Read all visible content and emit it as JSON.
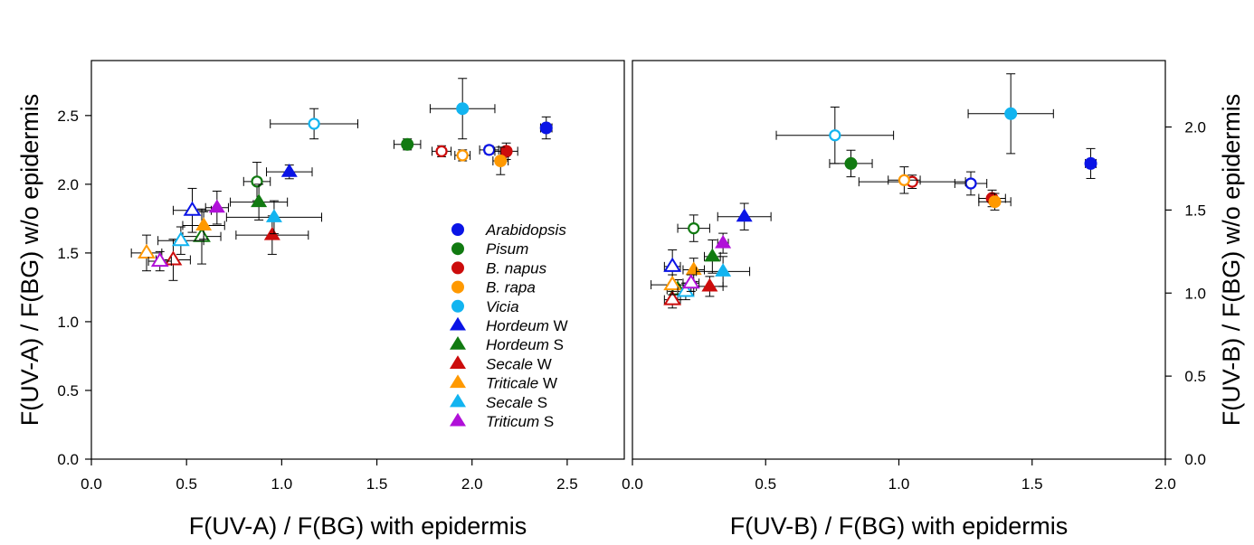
{
  "colors": {
    "Arabidopsis": "#0a14e6",
    "Pisum": "#117a11",
    "B. napus": "#cc0c0c",
    "B. rapa": "#ff9900",
    "Vicia": "#12b4f0",
    "Hordeum W": "#0a14e6",
    "Hordeum S": "#117a11",
    "Secale W": "#cc0c0c",
    "Triticale W": "#ff9900",
    "Secale S": "#12b4f0",
    "Triticum S": "#b010d8"
  },
  "legend": [
    {
      "key": "Arabidopsis",
      "italic": "Arabidopsis",
      "suffix": "",
      "marker": "circle"
    },
    {
      "key": "Pisum",
      "italic": "Pisum",
      "suffix": "",
      "marker": "circle"
    },
    {
      "key": "B. napus",
      "italic": "B. napus",
      "suffix": "",
      "marker": "circle"
    },
    {
      "key": "B. rapa",
      "italic": "B. rapa",
      "suffix": "",
      "marker": "circle"
    },
    {
      "key": "Vicia",
      "italic": "Vicia",
      "suffix": "",
      "marker": "circle"
    },
    {
      "key": "Hordeum W",
      "italic": "Hordeum",
      "suffix": " W",
      "marker": "triangle"
    },
    {
      "key": "Hordeum S",
      "italic": "Hordeum",
      "suffix": " S",
      "marker": "triangle"
    },
    {
      "key": "Secale W",
      "italic": "Secale",
      "suffix": " W",
      "marker": "triangle"
    },
    {
      "key": "Triticale W",
      "italic": "Triticale",
      "suffix": " W",
      "marker": "triangle"
    },
    {
      "key": "Secale S",
      "italic": "Secale",
      "suffix": " S",
      "marker": "triangle"
    },
    {
      "key": "Triticum S",
      "italic": "Triticum",
      "suffix": " S",
      "marker": "triangle"
    }
  ],
  "chart_data": [
    {
      "type": "scatter",
      "title": "",
      "xlabel": "F(UV-A) / F(BG) with epidermis",
      "ylabel": "F(UV-A) / F(BG) w/o epidermis",
      "ylabel_side": "left",
      "xlim": [
        0,
        2.8
      ],
      "ylim": [
        0,
        2.9
      ],
      "xticks": [
        "0.0",
        "0.5",
        "1.0",
        "1.5",
        "2.0",
        "2.5"
      ],
      "yticks": [
        "0.0",
        "0.5",
        "1.0",
        "1.5",
        "2.0",
        "2.5"
      ],
      "grid": false,
      "legend_position": "lower-right",
      "points": [
        {
          "series": "Arabidopsis",
          "marker": "circle",
          "filled": true,
          "x": 2.39,
          "y": 2.41,
          "xerr": 0.03,
          "yerr": 0.08
        },
        {
          "series": "Arabidopsis",
          "marker": "circle",
          "filled": false,
          "x": 2.09,
          "y": 2.25,
          "xerr": 0.05,
          "yerr": 0.03
        },
        {
          "series": "Pisum",
          "marker": "circle",
          "filled": true,
          "x": 1.66,
          "y": 2.29,
          "xerr": 0.07,
          "yerr": 0.04
        },
        {
          "series": "Pisum",
          "marker": "circle",
          "filled": false,
          "x": 0.87,
          "y": 2.02,
          "xerr": 0.07,
          "yerr": 0.14
        },
        {
          "series": "B. napus",
          "marker": "circle",
          "filled": true,
          "x": 2.18,
          "y": 2.24,
          "xerr": 0.06,
          "yerr": 0.06
        },
        {
          "series": "B. napus",
          "marker": "circle",
          "filled": false,
          "x": 1.84,
          "y": 2.24,
          "xerr": 0.05,
          "yerr": 0.04
        },
        {
          "series": "B. rapa",
          "marker": "circle",
          "filled": true,
          "x": 2.15,
          "y": 2.17,
          "xerr": 0.04,
          "yerr": 0.1
        },
        {
          "series": "B. rapa",
          "marker": "circle",
          "filled": false,
          "x": 1.95,
          "y": 2.21,
          "xerr": 0.04,
          "yerr": 0.04
        },
        {
          "series": "Vicia",
          "marker": "circle",
          "filled": true,
          "x": 1.95,
          "y": 2.55,
          "xerr": 0.17,
          "yerr": 0.22
        },
        {
          "series": "Vicia",
          "marker": "circle",
          "filled": false,
          "x": 1.17,
          "y": 2.44,
          "xerr": 0.23,
          "yerr": 0.11
        },
        {
          "series": "Hordeum W",
          "marker": "triangle",
          "filled": true,
          "x": 1.04,
          "y": 2.09,
          "xerr": 0.12,
          "yerr": 0.05
        },
        {
          "series": "Hordeum W",
          "marker": "triangle",
          "filled": false,
          "x": 0.53,
          "y": 1.81,
          "xerr": 0.1,
          "yerr": 0.16
        },
        {
          "series": "Hordeum S",
          "marker": "triangle",
          "filled": true,
          "x": 0.88,
          "y": 1.87,
          "xerr": 0.15,
          "yerr": 0.13
        },
        {
          "series": "Hordeum S",
          "marker": "triangle",
          "filled": false,
          "x": 0.58,
          "y": 1.62,
          "xerr": 0.1,
          "yerr": 0.2
        },
        {
          "series": "Secale W",
          "marker": "triangle",
          "filled": true,
          "x": 0.95,
          "y": 1.63,
          "xerr": 0.19,
          "yerr": 0.14
        },
        {
          "series": "Secale W",
          "marker": "triangle",
          "filled": false,
          "x": 0.43,
          "y": 1.45,
          "xerr": 0.09,
          "yerr": 0.15
        },
        {
          "series": "Triticale W",
          "marker": "triangle",
          "filled": true,
          "x": 0.59,
          "y": 1.7,
          "xerr": 0.11,
          "yerr": 0.1
        },
        {
          "series": "Triticale W",
          "marker": "triangle",
          "filled": false,
          "x": 0.29,
          "y": 1.5,
          "xerr": 0.08,
          "yerr": 0.13
        },
        {
          "series": "Secale S",
          "marker": "triangle",
          "filled": true,
          "x": 0.96,
          "y": 1.76,
          "xerr": 0.25,
          "yerr": 0.12
        },
        {
          "series": "Secale S",
          "marker": "triangle",
          "filled": false,
          "x": 0.47,
          "y": 1.59,
          "xerr": 0.12,
          "yerr": 0.1
        },
        {
          "series": "Triticum S",
          "marker": "triangle",
          "filled": true,
          "x": 0.66,
          "y": 1.83,
          "xerr": 0.06,
          "yerr": 0.12
        },
        {
          "series": "Triticum S",
          "marker": "triangle",
          "filled": false,
          "x": 0.36,
          "y": 1.44,
          "xerr": 0.06,
          "yerr": 0.07
        }
      ]
    },
    {
      "type": "scatter",
      "title": "",
      "xlabel": "F(UV-B) / F(BG) with epidermis",
      "ylabel": "F(UV-B) / F(BG) w/o epidermis",
      "ylabel_side": "right",
      "xlim": [
        0,
        2.0
      ],
      "ylim": [
        0,
        2.4
      ],
      "xticks": [
        "0.0",
        "0.5",
        "1.0",
        "1.5",
        "2.0"
      ],
      "yticks": [
        "0.0",
        "0.5",
        "1.0",
        "1.5",
        "2.0"
      ],
      "grid": false,
      "points": [
        {
          "series": "Arabidopsis",
          "marker": "circle",
          "filled": true,
          "x": 1.72,
          "y": 1.78,
          "xerr": 0.02,
          "yerr": 0.09
        },
        {
          "series": "Arabidopsis",
          "marker": "circle",
          "filled": false,
          "x": 1.27,
          "y": 1.66,
          "xerr": 0.06,
          "yerr": 0.07
        },
        {
          "series": "Pisum",
          "marker": "circle",
          "filled": true,
          "x": 0.82,
          "y": 1.78,
          "xerr": 0.08,
          "yerr": 0.08
        },
        {
          "series": "Pisum",
          "marker": "circle",
          "filled": false,
          "x": 0.23,
          "y": 1.39,
          "xerr": 0.06,
          "yerr": 0.08
        },
        {
          "series": "B. napus",
          "marker": "circle",
          "filled": true,
          "x": 1.35,
          "y": 1.57,
          "xerr": 0.05,
          "yerr": 0.05
        },
        {
          "series": "B. napus",
          "marker": "circle",
          "filled": false,
          "x": 1.05,
          "y": 1.67,
          "xerr": 0.2,
          "yerr": 0.04
        },
        {
          "series": "B. rapa",
          "marker": "circle",
          "filled": true,
          "x": 1.36,
          "y": 1.55,
          "xerr": 0.06,
          "yerr": 0.05
        },
        {
          "series": "B. rapa",
          "marker": "circle",
          "filled": false,
          "x": 1.02,
          "y": 1.68,
          "xerr": 0.06,
          "yerr": 0.08
        },
        {
          "series": "Vicia",
          "marker": "circle",
          "filled": true,
          "x": 1.42,
          "y": 2.08,
          "xerr": 0.16,
          "yerr": 0.24
        },
        {
          "series": "Vicia",
          "marker": "circle",
          "filled": false,
          "x": 0.76,
          "y": 1.95,
          "xerr": 0.22,
          "yerr": 0.17
        },
        {
          "series": "Hordeum W",
          "marker": "triangle",
          "filled": true,
          "x": 0.42,
          "y": 1.46,
          "xerr": 0.1,
          "yerr": 0.08
        },
        {
          "series": "Hordeum W",
          "marker": "triangle",
          "filled": false,
          "x": 0.15,
          "y": 1.16,
          "xerr": 0.03,
          "yerr": 0.1
        },
        {
          "series": "Hordeum S",
          "marker": "triangle",
          "filled": true,
          "x": 0.3,
          "y": 1.22,
          "xerr": 0.03,
          "yerr": 0.1
        },
        {
          "series": "Hordeum S",
          "marker": "triangle",
          "filled": false,
          "x": 0.17,
          "y": 1.02,
          "xerr": 0.04,
          "yerr": 0.06
        },
        {
          "series": "Secale W",
          "marker": "triangle",
          "filled": true,
          "x": 0.29,
          "y": 1.04,
          "xerr": 0.05,
          "yerr": 0.06
        },
        {
          "series": "Secale W",
          "marker": "triangle",
          "filled": false,
          "x": 0.15,
          "y": 0.96,
          "xerr": 0.03,
          "yerr": 0.05
        },
        {
          "series": "Triticale W",
          "marker": "triangle",
          "filled": true,
          "x": 0.23,
          "y": 1.14,
          "xerr": 0.04,
          "yerr": 0.07
        },
        {
          "series": "Triticale W",
          "marker": "triangle",
          "filled": false,
          "x": 0.15,
          "y": 1.05,
          "xerr": 0.08,
          "yerr": 0.06
        },
        {
          "series": "Secale S",
          "marker": "triangle",
          "filled": true,
          "x": 0.34,
          "y": 1.13,
          "xerr": 0.1,
          "yerr": 0.09
        },
        {
          "series": "Secale S",
          "marker": "triangle",
          "filled": false,
          "x": 0.2,
          "y": 1.01,
          "xerr": 0.03,
          "yerr": 0.05
        },
        {
          "series": "Triticum S",
          "marker": "triangle",
          "filled": true,
          "x": 0.34,
          "y": 1.3,
          "xerr": 0.02,
          "yerr": 0.06
        },
        {
          "series": "Triticum S",
          "marker": "triangle",
          "filled": false,
          "x": 0.22,
          "y": 1.06,
          "xerr": 0.03,
          "yerr": 0.05
        }
      ]
    }
  ]
}
